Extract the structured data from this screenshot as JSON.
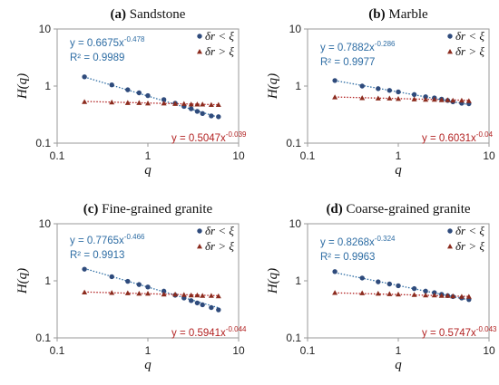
{
  "chart_data": [
    {
      "type": "scatter",
      "panel_label": "(a)",
      "title": "Sandstone",
      "xlabel": "q",
      "ylabel": "H(q)",
      "xscale": "log",
      "yscale": "log",
      "xlim": [
        0.1,
        10
      ],
      "ylim": [
        0.1,
        10
      ],
      "x_ticks": [
        "0.1",
        "1",
        "10"
      ],
      "y_ticks": [
        "0.1",
        "1",
        "10"
      ],
      "grid": false,
      "legend_position": "top-right",
      "series": [
        {
          "name": "δr < ξ",
          "marker": "circle",
          "color": "#2f4b7c",
          "x": [
            0.2,
            0.4,
            0.6,
            0.8,
            1.0,
            1.5,
            2.0,
            2.5,
            3.0,
            3.5,
            4.0,
            5.0,
            6.0
          ],
          "y": [
            1.45,
            1.05,
            0.86,
            0.76,
            0.68,
            0.58,
            0.5,
            0.44,
            0.4,
            0.36,
            0.33,
            0.3,
            0.29
          ]
        },
        {
          "name": "δr > ξ",
          "marker": "triangle",
          "color": "#8b2b1e",
          "x": [
            0.2,
            0.4,
            0.6,
            0.8,
            1.0,
            1.5,
            2.0,
            2.5,
            3.0,
            3.5,
            4.0,
            5.0,
            6.0
          ],
          "y": [
            0.53,
            0.52,
            0.51,
            0.51,
            0.5,
            0.5,
            0.49,
            0.49,
            0.48,
            0.48,
            0.48,
            0.47,
            0.47
          ]
        }
      ],
      "fits": [
        {
          "series": "δr < ξ",
          "a": 0.6675,
          "b": -0.478,
          "equation_base": "y = 0.6675x",
          "exponent": "-0.478",
          "r2": "R² = 0.9989",
          "color": "#2e6da4"
        },
        {
          "series": "δr > ξ",
          "a": 0.5047,
          "b": -0.039,
          "equation_base": "y = 0.5047x",
          "exponent": "-0.039",
          "r2": "",
          "color": "#b22222"
        }
      ]
    },
    {
      "type": "scatter",
      "panel_label": "(b)",
      "title": "Marble",
      "xlabel": "q",
      "ylabel": "H(q)",
      "xscale": "log",
      "yscale": "log",
      "xlim": [
        0.1,
        10
      ],
      "ylim": [
        0.1,
        10
      ],
      "x_ticks": [
        "0.1",
        "1",
        "10"
      ],
      "y_ticks": [
        "0.1",
        "1",
        "10"
      ],
      "grid": false,
      "legend_position": "top-right",
      "series": [
        {
          "name": "δr < ξ",
          "marker": "circle",
          "color": "#2f4b7c",
          "x": [
            0.2,
            0.4,
            0.6,
            0.8,
            1.0,
            1.5,
            2.0,
            2.5,
            3.0,
            3.5,
            4.0,
            5.0,
            6.0
          ],
          "y": [
            1.25,
            1.0,
            0.9,
            0.84,
            0.79,
            0.71,
            0.65,
            0.62,
            0.59,
            0.56,
            0.53,
            0.5,
            0.49
          ]
        },
        {
          "name": "δr > ξ",
          "marker": "triangle",
          "color": "#8b2b1e",
          "x": [
            0.2,
            0.4,
            0.6,
            0.8,
            1.0,
            1.5,
            2.0,
            2.5,
            3.0,
            3.5,
            4.0,
            5.0,
            6.0
          ],
          "y": [
            0.64,
            0.62,
            0.61,
            0.61,
            0.6,
            0.59,
            0.58,
            0.58,
            0.57,
            0.57,
            0.56,
            0.56,
            0.55
          ]
        }
      ],
      "fits": [
        {
          "series": "δr < ξ",
          "a": 0.7882,
          "b": -0.286,
          "equation_base": "y = 0.7882x",
          "exponent": "-0.286",
          "r2": "R² = 0.9977",
          "color": "#2e6da4"
        },
        {
          "series": "δr > ξ",
          "a": 0.6031,
          "b": -0.04,
          "equation_base": "y = 0.6031x",
          "exponent": "-0.04",
          "r2": "",
          "color": "#b22222"
        }
      ]
    },
    {
      "type": "scatter",
      "panel_label": "(c)",
      "title": "Fine-grained granite",
      "xlabel": "q",
      "ylabel": "H(q)",
      "xscale": "log",
      "yscale": "log",
      "xlim": [
        0.1,
        10
      ],
      "ylim": [
        0.1,
        10
      ],
      "x_ticks": [
        "0.1",
        "1",
        "10"
      ],
      "y_ticks": [
        "0.1",
        "1",
        "10"
      ],
      "grid": false,
      "legend_position": "top-right",
      "series": [
        {
          "name": "δr < ξ",
          "marker": "circle",
          "color": "#2f4b7c",
          "x": [
            0.2,
            0.4,
            0.6,
            0.8,
            1.0,
            1.5,
            2.0,
            2.5,
            3.0,
            3.5,
            4.0,
            5.0,
            6.0
          ],
          "y": [
            1.6,
            1.18,
            0.98,
            0.86,
            0.78,
            0.66,
            0.56,
            0.5,
            0.45,
            0.41,
            0.38,
            0.34,
            0.31
          ]
        },
        {
          "name": "δr > ξ",
          "marker": "triangle",
          "color": "#8b2b1e",
          "x": [
            0.2,
            0.4,
            0.6,
            0.8,
            1.0,
            1.5,
            2.0,
            2.5,
            3.0,
            3.5,
            4.0,
            5.0,
            6.0
          ],
          "y": [
            0.63,
            0.62,
            0.61,
            0.6,
            0.6,
            0.58,
            0.58,
            0.57,
            0.56,
            0.56,
            0.55,
            0.55,
            0.54
          ]
        }
      ],
      "fits": [
        {
          "series": "δr < ξ",
          "a": 0.7765,
          "b": -0.466,
          "equation_base": "y = 0.7765x",
          "exponent": "-0.466",
          "r2": "R² = 0.9913",
          "color": "#2e6da4"
        },
        {
          "series": "δr > ξ",
          "a": 0.5941,
          "b": -0.044,
          "equation_base": "y = 0.5941x",
          "exponent": "-0.044",
          "r2": "",
          "color": "#b22222"
        }
      ]
    },
    {
      "type": "scatter",
      "panel_label": "(d)",
      "title": "Coarse-grained granite",
      "xlabel": "q",
      "ylabel": "H(q)",
      "xscale": "log",
      "yscale": "log",
      "xlim": [
        0.1,
        10
      ],
      "ylim": [
        0.1,
        10
      ],
      "x_ticks": [
        "0.1",
        "1",
        "10"
      ],
      "y_ticks": [
        "0.1",
        "1",
        "10"
      ],
      "grid": false,
      "legend_position": "top-right",
      "series": [
        {
          "name": "δr < ξ",
          "marker": "circle",
          "color": "#2f4b7c",
          "x": [
            0.2,
            0.4,
            0.6,
            0.8,
            1.0,
            1.5,
            2.0,
            2.5,
            3.0,
            3.5,
            4.0,
            5.0,
            6.0
          ],
          "y": [
            1.45,
            1.12,
            0.96,
            0.88,
            0.82,
            0.73,
            0.66,
            0.62,
            0.58,
            0.55,
            0.53,
            0.5,
            0.47
          ]
        },
        {
          "name": "δr > ξ",
          "marker": "triangle",
          "color": "#8b2b1e",
          "x": [
            0.2,
            0.4,
            0.6,
            0.8,
            1.0,
            1.5,
            2.0,
            2.5,
            3.0,
            3.5,
            4.0,
            5.0,
            6.0
          ],
          "y": [
            0.62,
            0.61,
            0.6,
            0.59,
            0.58,
            0.57,
            0.56,
            0.56,
            0.55,
            0.55,
            0.54,
            0.53,
            0.53
          ]
        }
      ],
      "fits": [
        {
          "series": "δr < ξ",
          "a": 0.8268,
          "b": -0.324,
          "equation_base": "y = 0.8268x",
          "exponent": "-0.324",
          "r2": "R² = 0.9963",
          "color": "#2e6da4"
        },
        {
          "series": "δr > ξ",
          "a": 0.5747,
          "b": -0.043,
          "equation_base": "y = 0.5747x",
          "exponent": "-0.043",
          "r2": "",
          "color": "#b22222"
        }
      ]
    }
  ]
}
